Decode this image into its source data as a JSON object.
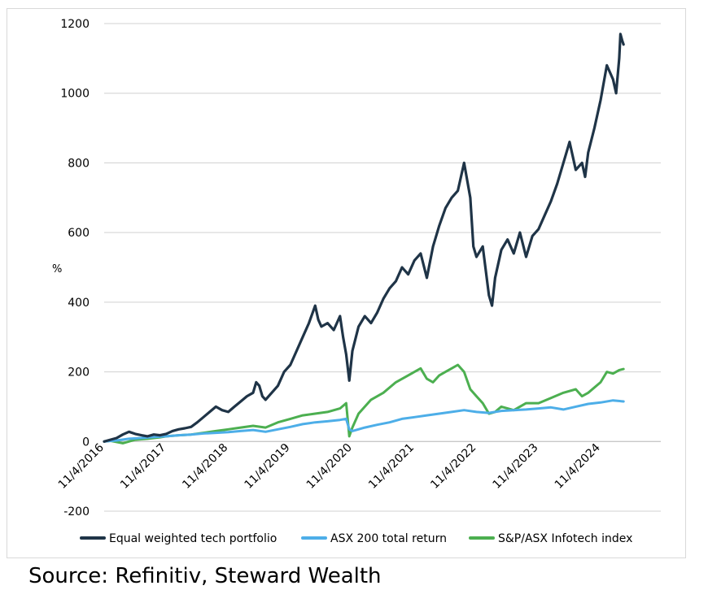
{
  "chart_data": {
    "type": "line",
    "title": "",
    "xlabel": "",
    "ylabel": "%",
    "ylim": [
      -200,
      1200
    ],
    "yticks": [
      -200,
      0,
      200,
      400,
      600,
      800,
      1000,
      1200
    ],
    "xlim": [
      2016.0,
      2024.97
    ],
    "xticks": [
      {
        "label": "11/4/2016",
        "t": 2016.0
      },
      {
        "label": "11/4/2017",
        "t": 2017.0
      },
      {
        "label": "11/4/2018",
        "t": 2018.0
      },
      {
        "label": "11/4/2019",
        "t": 2019.0
      },
      {
        "label": "11/4/2020",
        "t": 2020.0
      },
      {
        "label": "11/4/2021",
        "t": 2021.0
      },
      {
        "label": "11/4/2022",
        "t": 2022.0
      },
      {
        "label": "11/4/2023",
        "t": 2023.0
      },
      {
        "label": "11/4/2024",
        "t": 2024.0
      }
    ],
    "grid": true,
    "legend_position": "bottom",
    "series": [
      {
        "name": "Equal weighted tech portfolio",
        "color": "#1f3447",
        "points": [
          [
            2016.0,
            0
          ],
          [
            2016.1,
            5
          ],
          [
            2016.2,
            10
          ],
          [
            2016.3,
            20
          ],
          [
            2016.4,
            28
          ],
          [
            2016.5,
            22
          ],
          [
            2016.6,
            18
          ],
          [
            2016.7,
            15
          ],
          [
            2016.8,
            20
          ],
          [
            2016.9,
            18
          ],
          [
            2017.0,
            22
          ],
          [
            2017.1,
            30
          ],
          [
            2017.2,
            35
          ],
          [
            2017.3,
            38
          ],
          [
            2017.4,
            42
          ],
          [
            2017.5,
            55
          ],
          [
            2017.6,
            70
          ],
          [
            2017.7,
            85
          ],
          [
            2017.8,
            100
          ],
          [
            2017.9,
            90
          ],
          [
            2018.0,
            85
          ],
          [
            2018.1,
            100
          ],
          [
            2018.2,
            115
          ],
          [
            2018.3,
            130
          ],
          [
            2018.4,
            140
          ],
          [
            2018.45,
            170
          ],
          [
            2018.5,
            160
          ],
          [
            2018.55,
            130
          ],
          [
            2018.6,
            120
          ],
          [
            2018.7,
            140
          ],
          [
            2018.8,
            160
          ],
          [
            2018.9,
            200
          ],
          [
            2019.0,
            220
          ],
          [
            2019.1,
            260
          ],
          [
            2019.2,
            300
          ],
          [
            2019.3,
            340
          ],
          [
            2019.4,
            390
          ],
          [
            2019.45,
            350
          ],
          [
            2019.5,
            330
          ],
          [
            2019.6,
            340
          ],
          [
            2019.7,
            320
          ],
          [
            2019.8,
            360
          ],
          [
            2019.85,
            300
          ],
          [
            2019.9,
            250
          ],
          [
            2019.95,
            175
          ],
          [
            2020.0,
            260
          ],
          [
            2020.1,
            330
          ],
          [
            2020.2,
            360
          ],
          [
            2020.3,
            340
          ],
          [
            2020.4,
            370
          ],
          [
            2020.5,
            410
          ],
          [
            2020.6,
            440
          ],
          [
            2020.7,
            460
          ],
          [
            2020.8,
            500
          ],
          [
            2020.9,
            480
          ],
          [
            2021.0,
            520
          ],
          [
            2021.1,
            540
          ],
          [
            2021.2,
            470
          ],
          [
            2021.3,
            560
          ],
          [
            2021.4,
            620
          ],
          [
            2021.5,
            670
          ],
          [
            2021.6,
            700
          ],
          [
            2021.7,
            720
          ],
          [
            2021.8,
            800
          ],
          [
            2021.85,
            750
          ],
          [
            2021.9,
            700
          ],
          [
            2021.95,
            560
          ],
          [
            2022.0,
            530
          ],
          [
            2022.1,
            560
          ],
          [
            2022.2,
            420
          ],
          [
            2022.25,
            390
          ],
          [
            2022.3,
            470
          ],
          [
            2022.4,
            550
          ],
          [
            2022.5,
            580
          ],
          [
            2022.6,
            540
          ],
          [
            2022.7,
            600
          ],
          [
            2022.8,
            530
          ],
          [
            2022.9,
            590
          ],
          [
            2023.0,
            610
          ],
          [
            2023.1,
            650
          ],
          [
            2023.2,
            690
          ],
          [
            2023.3,
            740
          ],
          [
            2023.4,
            800
          ],
          [
            2023.5,
            860
          ],
          [
            2023.55,
            820
          ],
          [
            2023.6,
            780
          ],
          [
            2023.7,
            800
          ],
          [
            2023.75,
            760
          ],
          [
            2023.8,
            830
          ],
          [
            2023.9,
            900
          ],
          [
            2024.0,
            980
          ],
          [
            2024.1,
            1080
          ],
          [
            2024.15,
            1060
          ],
          [
            2024.2,
            1040
          ],
          [
            2024.25,
            1000
          ],
          [
            2024.3,
            1100
          ],
          [
            2024.32,
            1170
          ],
          [
            2024.35,
            1150
          ],
          [
            2024.37,
            1140
          ]
        ]
      },
      {
        "name": "ASX 200 total return",
        "color": "#4daee8",
        "points": [
          [
            2016.0,
            0
          ],
          [
            2016.2,
            3
          ],
          [
            2016.4,
            8
          ],
          [
            2016.6,
            10
          ],
          [
            2016.8,
            13
          ],
          [
            2017.0,
            15
          ],
          [
            2017.2,
            18
          ],
          [
            2017.4,
            20
          ],
          [
            2017.6,
            23
          ],
          [
            2017.8,
            25
          ],
          [
            2018.0,
            27
          ],
          [
            2018.2,
            30
          ],
          [
            2018.4,
            33
          ],
          [
            2018.6,
            28
          ],
          [
            2018.8,
            35
          ],
          [
            2019.0,
            42
          ],
          [
            2019.2,
            50
          ],
          [
            2019.4,
            55
          ],
          [
            2019.6,
            58
          ],
          [
            2019.8,
            62
          ],
          [
            2019.9,
            65
          ],
          [
            2019.95,
            35
          ],
          [
            2020.0,
            30
          ],
          [
            2020.2,
            40
          ],
          [
            2020.4,
            48
          ],
          [
            2020.6,
            55
          ],
          [
            2020.8,
            65
          ],
          [
            2021.0,
            70
          ],
          [
            2021.2,
            75
          ],
          [
            2021.4,
            80
          ],
          [
            2021.6,
            85
          ],
          [
            2021.8,
            90
          ],
          [
            2022.0,
            85
          ],
          [
            2022.2,
            82
          ],
          [
            2022.4,
            88
          ],
          [
            2022.6,
            90
          ],
          [
            2022.8,
            92
          ],
          [
            2023.0,
            95
          ],
          [
            2023.2,
            98
          ],
          [
            2023.4,
            92
          ],
          [
            2023.6,
            100
          ],
          [
            2023.8,
            108
          ],
          [
            2024.0,
            112
          ],
          [
            2024.2,
            118
          ],
          [
            2024.37,
            115
          ]
        ]
      },
      {
        "name": "S&P/ASX Infotech index",
        "color": "#4caf50",
        "points": [
          [
            2016.0,
            0
          ],
          [
            2016.1,
            2
          ],
          [
            2016.3,
            -5
          ],
          [
            2016.5,
            5
          ],
          [
            2016.7,
            8
          ],
          [
            2016.9,
            12
          ],
          [
            2017.0,
            15
          ],
          [
            2017.2,
            18
          ],
          [
            2017.4,
            20
          ],
          [
            2017.6,
            25
          ],
          [
            2017.8,
            30
          ],
          [
            2018.0,
            35
          ],
          [
            2018.2,
            40
          ],
          [
            2018.4,
            45
          ],
          [
            2018.6,
            40
          ],
          [
            2018.8,
            55
          ],
          [
            2019.0,
            65
          ],
          [
            2019.2,
            75
          ],
          [
            2019.4,
            80
          ],
          [
            2019.6,
            85
          ],
          [
            2019.8,
            95
          ],
          [
            2019.9,
            110
          ],
          [
            2019.95,
            15
          ],
          [
            2020.0,
            40
          ],
          [
            2020.1,
            80
          ],
          [
            2020.3,
            120
          ],
          [
            2020.5,
            140
          ],
          [
            2020.7,
            170
          ],
          [
            2020.9,
            190
          ],
          [
            2021.0,
            200
          ],
          [
            2021.1,
            210
          ],
          [
            2021.2,
            180
          ],
          [
            2021.3,
            170
          ],
          [
            2021.4,
            190
          ],
          [
            2021.5,
            200
          ],
          [
            2021.6,
            210
          ],
          [
            2021.7,
            220
          ],
          [
            2021.8,
            200
          ],
          [
            2021.9,
            150
          ],
          [
            2022.0,
            130
          ],
          [
            2022.1,
            110
          ],
          [
            2022.2,
            80
          ],
          [
            2022.3,
            85
          ],
          [
            2022.4,
            100
          ],
          [
            2022.5,
            95
          ],
          [
            2022.6,
            90
          ],
          [
            2022.8,
            110
          ],
          [
            2023.0,
            110
          ],
          [
            2023.2,
            125
          ],
          [
            2023.4,
            140
          ],
          [
            2023.6,
            150
          ],
          [
            2023.7,
            130
          ],
          [
            2023.8,
            140
          ],
          [
            2024.0,
            170
          ],
          [
            2024.1,
            200
          ],
          [
            2024.2,
            195
          ],
          [
            2024.3,
            205
          ],
          [
            2024.37,
            208
          ]
        ]
      }
    ]
  },
  "source_text": "Source: Refinitiv, Steward Wealth"
}
